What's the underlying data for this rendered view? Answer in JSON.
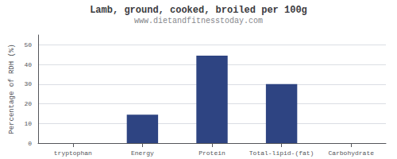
{
  "chart_data": {
    "type": "bar",
    "title": "Lamb, ground, cooked, broiled per 100g",
    "subtitle": "www.dietandfitnesstoday.com",
    "categories": [
      "tryptophan",
      "Energy",
      "Protein",
      "Total-lipid-(fat)",
      "Carbohydrate"
    ],
    "values": [
      0,
      14.5,
      44.5,
      30.0,
      0
    ],
    "color": "#2e4482",
    "ylabel": "Percentage of RDH (%)",
    "ylim": [
      0,
      55
    ],
    "yticks": [
      0,
      10,
      20,
      30,
      40,
      50
    ],
    "grid": true
  }
}
